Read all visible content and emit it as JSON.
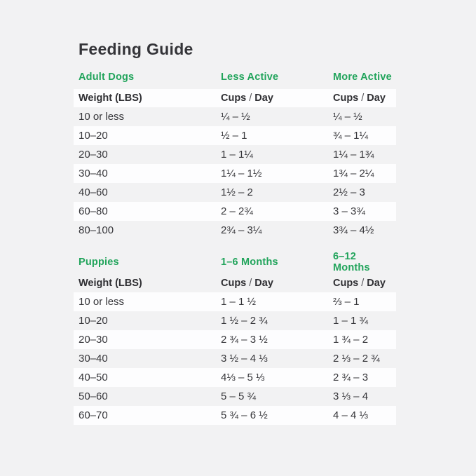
{
  "page": {
    "title": "Feeding Guide",
    "background_color": "#f2f2f3",
    "stripe_color": "#fdfdfe",
    "accent_green": "#21a45b",
    "text_color": "#343438"
  },
  "cups_day": {
    "cups": "Cups",
    "slash": "/",
    "day": "Day"
  },
  "adult": {
    "section_label": "Adult Dogs",
    "col2_header": "Less Active",
    "col3_header": "More Active",
    "weight_header": "Weight (LBS)",
    "rows": [
      {
        "weight": "10 or less",
        "less_active": "¼ – ½",
        "more_active": "¼ – ½"
      },
      {
        "weight": "10–20",
        "less_active": "½ – 1",
        "more_active": "¾ – 1¼"
      },
      {
        "weight": "20–30",
        "less_active": "1 – 1¼",
        "more_active": "1¼ – 1¾"
      },
      {
        "weight": "30–40",
        "less_active": "1¼ – 1½",
        "more_active": "1¾ – 2¼"
      },
      {
        "weight": "40–60",
        "less_active": "1½ – 2",
        "more_active": "2½ – 3"
      },
      {
        "weight": "60–80",
        "less_active": "2 – 2¾",
        "more_active": "3 – 3¾"
      },
      {
        "weight": "80–100",
        "less_active": "2¾ – 3¼",
        "more_active": "3¾ – 4½"
      }
    ]
  },
  "puppies": {
    "section_label": "Puppies",
    "col2_header": "1–6 Months",
    "col3_header": "6–12 Months",
    "weight_header": "Weight (LBS)",
    "rows": [
      {
        "weight": "10 or less",
        "months_1_6": "1 – 1 ½",
        "months_6_12": "⅔ – 1"
      },
      {
        "weight": "10–20",
        "months_1_6": "1 ½ – 2 ¾",
        "months_6_12": "1 – 1 ¾"
      },
      {
        "weight": "20–30",
        "months_1_6": "2 ¾ – 3 ½",
        "months_6_12": "1 ¾ – 2"
      },
      {
        "weight": "30–40",
        "months_1_6": "3 ½ – 4 ⅓",
        "months_6_12": "2 ⅓ – 2 ¾"
      },
      {
        "weight": "40–50",
        "months_1_6": "4⅓ – 5 ⅓",
        "months_6_12": "2 ¾ – 3"
      },
      {
        "weight": "50–60",
        "months_1_6": "5 – 5 ¾",
        "months_6_12": "3 ⅓ – 4"
      },
      {
        "weight": "60–70",
        "months_1_6": "5 ¾ – 6 ½",
        "months_6_12": "4 – 4 ⅓"
      }
    ]
  },
  "chart_data": [
    {
      "type": "table",
      "title": "Adult Dogs",
      "columns": [
        "Weight (LBS)",
        "Less Active Cups / Day",
        "More Active Cups / Day"
      ],
      "rows": [
        [
          "10 or less",
          "¼ – ½",
          "¼ – ½"
        ],
        [
          "10–20",
          "½ – 1",
          "¾ – 1¼"
        ],
        [
          "20–30",
          "1 – 1¼",
          "1¼ – 1¾"
        ],
        [
          "30–40",
          "1¼ – 1½",
          "1¾ – 2¼"
        ],
        [
          "40–60",
          "1½ – 2",
          "2½ – 3"
        ],
        [
          "60–80",
          "2 – 2¾",
          "3 – 3¾"
        ],
        [
          "80–100",
          "2¾ – 3¼",
          "3¾ – 4½"
        ]
      ]
    },
    {
      "type": "table",
      "title": "Puppies",
      "columns": [
        "Weight (LBS)",
        "1–6 Months Cups / Day",
        "6–12 Months Cups / Day"
      ],
      "rows": [
        [
          "10 or less",
          "1 – 1 ½",
          "⅔ – 1"
        ],
        [
          "10–20",
          "1 ½ – 2 ¾",
          "1 – 1 ¾"
        ],
        [
          "20–30",
          "2 ¾ – 3 ½",
          "1 ¾ – 2"
        ],
        [
          "30–40",
          "3 ½ – 4 ⅓",
          "2 ⅓ – 2 ¾"
        ],
        [
          "40–50",
          "4⅓ – 5 ⅓",
          "2 ¾ – 3"
        ],
        [
          "50–60",
          "5 – 5 ¾",
          "3 ⅓ – 4"
        ],
        [
          "60–70",
          "5 ¾ – 6 ½",
          "4 – 4 ⅓"
        ]
      ]
    }
  ]
}
